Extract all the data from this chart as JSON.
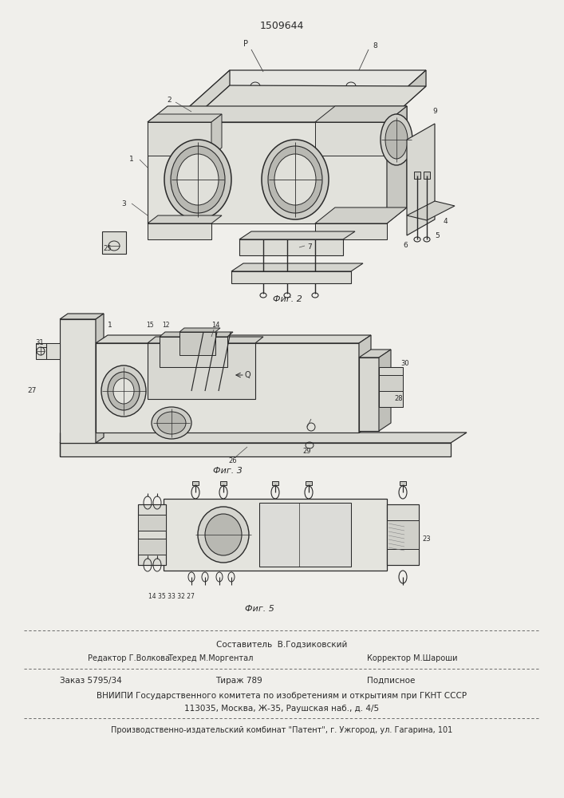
{
  "patent_number": "1509644",
  "bg": "#f0efeb",
  "fig2_caption": "Фиг. 2",
  "fig3_caption": "Фиг. 3",
  "fig5_caption": "Фиг. 5",
  "ink": "#2a2a2a",
  "footer": {
    "line1_center": "Составитель  В.Годзиковский",
    "line2_left": "Редактор Г.Волкова",
    "line2_mid": "Техред М.Моргентал",
    "line2_right": "Корректор М.Шароши",
    "line3_left": "Заказ 5795/34",
    "line3_mid": "Тираж 789",
    "line3_right": "Подписное",
    "line4": "ВНИИПИ Государственного комитета по изобретениям и открытиям при ГКНТ СССР",
    "line5": "113035, Москва, Ж-35, Раушская наб., д. 4/5",
    "line6": "Производственно-издательский комбинат \"Патент\", г. Ужгород, ул. Гагарина, 101"
  }
}
